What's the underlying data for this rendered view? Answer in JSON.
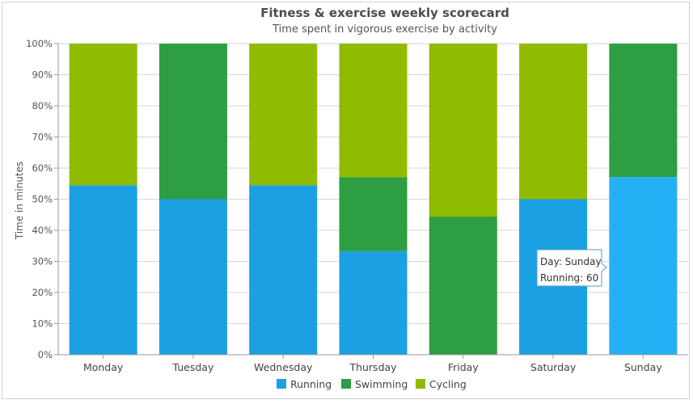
{
  "chart_data": {
    "type": "bar",
    "stacked": true,
    "normalized": true,
    "title": "Fitness & exercise weekly scorecard",
    "subtitle": "Time spent in vigorous exercise by activity",
    "ylabel": "Time in minutes",
    "ylim": [
      0,
      100
    ],
    "y_ticks": [
      "0%",
      "10%",
      "20%",
      "30%",
      "40%",
      "50%",
      "60%",
      "70%",
      "80%",
      "90%",
      "100%"
    ],
    "categories": [
      "Monday",
      "Tuesday",
      "Wednesday",
      "Thursday",
      "Friday",
      "Saturday",
      "Sunday"
    ],
    "series": [
      {
        "name": "Running",
        "color": "#1ba1e2",
        "percent": [
          54.5,
          50,
          54.5,
          33.3,
          0,
          50,
          57.1
        ]
      },
      {
        "name": "Swimming",
        "color": "#2d9e41",
        "percent": [
          0,
          50,
          0,
          23.8,
          44.4,
          0,
          42.9
        ]
      },
      {
        "name": "Cycling",
        "color": "#8fbc00",
        "percent": [
          45.5,
          0,
          45.5,
          42.9,
          55.6,
          50,
          0
        ]
      }
    ],
    "highlight": {
      "category_index": 6,
      "series_index": 0,
      "color": "#25b0f5"
    },
    "legend_position": "bottom-center",
    "grid": true,
    "tooltip": {
      "lines": [
        "Day: Sunday",
        "Running: 60"
      ]
    }
  }
}
